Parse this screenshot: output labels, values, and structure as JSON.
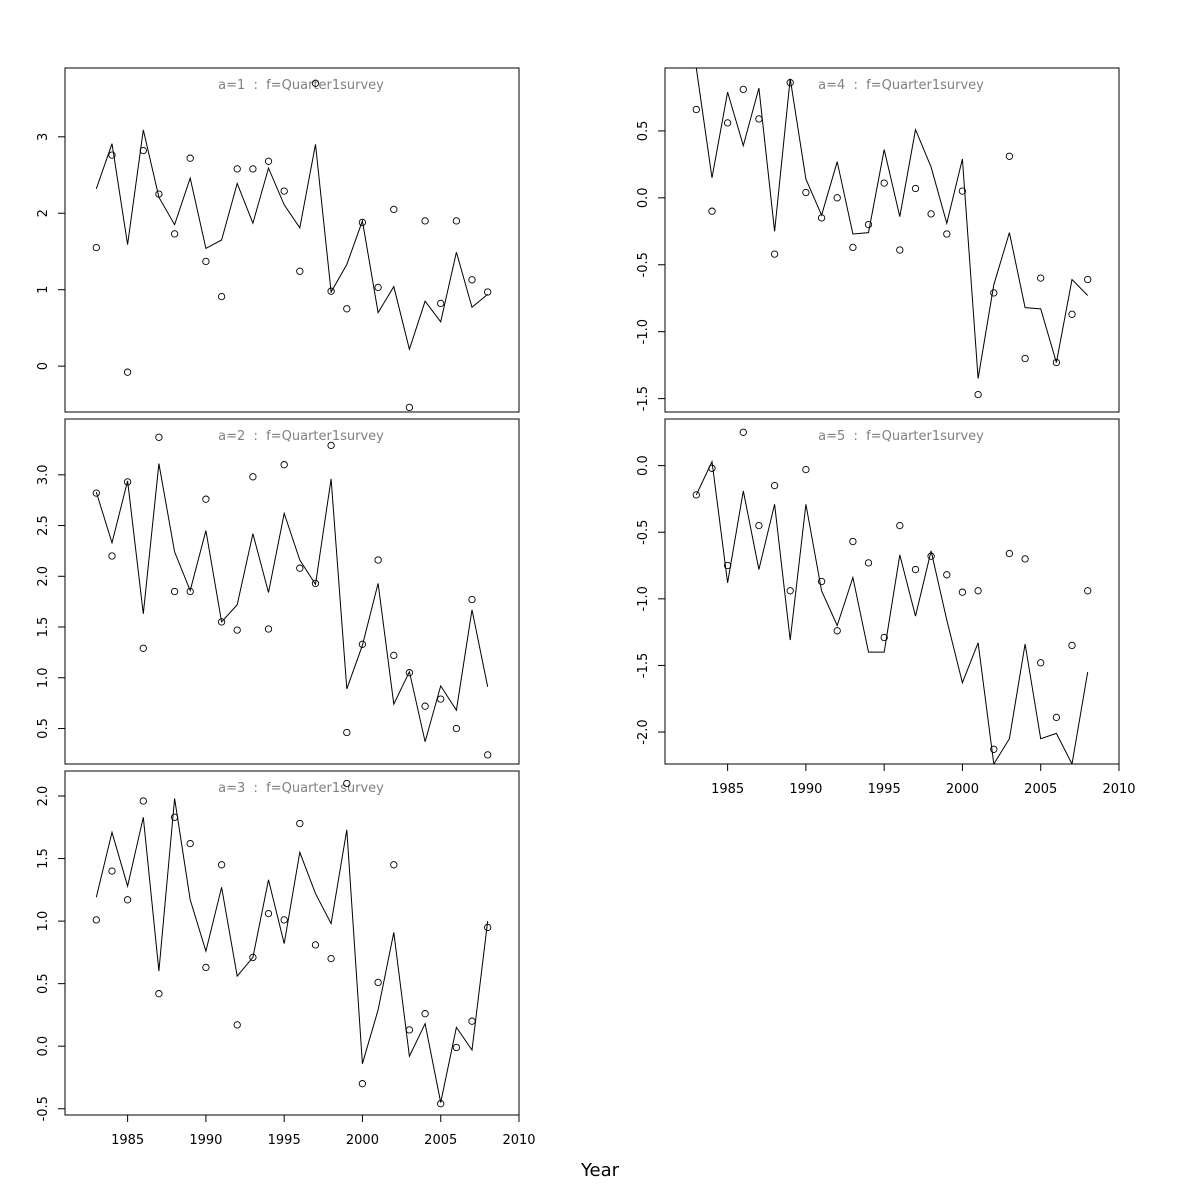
{
  "xlabel": "Year",
  "chart_data": {
    "type": "line",
    "xlabel": "Year",
    "xlim": [
      1981,
      2010
    ],
    "xticks": [
      1985,
      1990,
      1995,
      2000,
      2005,
      2010
    ],
    "x": [
      1983,
      1984,
      1985,
      1986,
      1987,
      1988,
      1989,
      1990,
      1991,
      1992,
      1993,
      1994,
      1995,
      1996,
      1997,
      1998,
      1999,
      2000,
      2001,
      2002,
      2003,
      2004,
      2005,
      2006,
      2007,
      2008
    ],
    "marks": "fitted values drawn as line, observed values as open circles",
    "panels": [
      {
        "title": "a=1  :  f=Quarter1survey",
        "ylim": [
          -0.6,
          3.9
        ],
        "yticks": [
          0,
          1,
          2,
          3
        ],
        "fitted": [
          2.32,
          2.91,
          1.59,
          3.09,
          2.21,
          1.85,
          2.46,
          1.54,
          1.65,
          2.39,
          1.87,
          2.59,
          2.11,
          1.81,
          2.9,
          0.97,
          1.33,
          1.9,
          0.7,
          1.04,
          0.22,
          0.85,
          0.58,
          1.49,
          0.77,
          0.94
        ],
        "observed": [
          1.55,
          2.76,
          -0.08,
          2.82,
          2.25,
          1.73,
          2.72,
          1.37,
          0.91,
          2.58,
          2.58,
          2.68,
          2.29,
          1.24,
          3.7,
          0.98,
          0.75,
          1.88,
          1.03,
          2.05,
          -0.54,
          1.9,
          0.82,
          1.9,
          1.13,
          0.97
        ]
      },
      {
        "title": "a=2  :  f=Quarter1survey",
        "ylim": [
          0.15,
          3.55
        ],
        "yticks": [
          0.5,
          1.0,
          1.5,
          2.0,
          2.5,
          3.0
        ],
        "fitted": [
          2.83,
          2.33,
          2.94,
          1.63,
          3.11,
          2.24,
          1.86,
          2.45,
          1.55,
          1.72,
          2.42,
          1.84,
          2.62,
          2.16,
          1.92,
          2.96,
          0.89,
          1.32,
          1.93,
          0.74,
          1.06,
          0.37,
          0.92,
          0.68,
          1.67,
          0.91
        ],
        "observed": [
          2.82,
          2.2,
          2.93,
          1.29,
          3.37,
          1.85,
          1.85,
          2.76,
          1.55,
          1.47,
          2.98,
          1.48,
          3.1,
          2.08,
          1.93,
          3.29,
          0.46,
          1.33,
          2.16,
          1.22,
          1.05,
          0.72,
          0.79,
          0.5,
          1.77,
          0.24
        ]
      },
      {
        "title": "a=3  :  f=Quarter1survey",
        "ylim": [
          -0.55,
          2.2
        ],
        "yticks": [
          -0.5,
          0.0,
          0.5,
          1.0,
          1.5,
          2.0
        ],
        "fitted": [
          1.19,
          1.71,
          1.28,
          1.83,
          0.6,
          1.98,
          1.17,
          0.76,
          1.27,
          0.56,
          0.71,
          1.33,
          0.82,
          1.55,
          1.22,
          0.98,
          1.73,
          -0.14,
          0.29,
          0.91,
          -0.08,
          0.18,
          -0.45,
          0.15,
          -0.03,
          1.0
        ],
        "observed": [
          1.01,
          1.4,
          1.17,
          1.96,
          0.42,
          1.83,
          1.62,
          0.63,
          1.45,
          0.17,
          0.71,
          1.06,
          1.01,
          1.78,
          0.81,
          0.7,
          2.1,
          -0.3,
          0.51,
          1.45,
          0.13,
          0.26,
          -0.46,
          -0.01,
          0.2,
          0.95
        ]
      },
      {
        "title": "a=4  :  f=Quarter1survey",
        "ylim": [
          -1.6,
          0.97
        ],
        "yticks": [
          -1.5,
          -1.0,
          -0.5,
          0.0,
          0.5
        ],
        "fitted": [
          0.97,
          0.15,
          0.79,
          0.39,
          0.82,
          -0.25,
          0.89,
          0.14,
          -0.13,
          0.27,
          -0.27,
          -0.26,
          0.36,
          -0.14,
          0.51,
          0.23,
          -0.19,
          0.29,
          -1.35,
          -0.65,
          -0.26,
          -0.82,
          -0.83,
          -1.23,
          -0.61,
          -0.73
        ],
        "observed": [
          0.66,
          -0.1,
          0.56,
          0.81,
          0.59,
          -0.42,
          0.86,
          0.04,
          -0.15,
          0.0,
          -0.37,
          -0.2,
          0.11,
          -0.39,
          0.07,
          -0.12,
          -0.27,
          0.05,
          -1.47,
          -0.71,
          0.31,
          -1.2,
          -0.6,
          -1.23,
          -0.87,
          -0.61
        ]
      },
      {
        "title": "a=5  :  f=Quarter1survey",
        "ylim": [
          -2.24,
          0.35
        ],
        "yticks": [
          -2.0,
          -1.5,
          -1.0,
          -0.5,
          0.0
        ],
        "fitted": [
          -0.22,
          0.03,
          -0.88,
          -0.19,
          -0.78,
          -0.29,
          -1.31,
          -0.29,
          -0.94,
          -1.2,
          -0.84,
          -1.4,
          -1.4,
          -0.67,
          -1.13,
          -0.64,
          -1.16,
          -1.63,
          -1.33,
          -2.24,
          -2.05,
          -1.34,
          -2.05,
          -2.01,
          -2.24,
          -1.55
        ],
        "observed": [
          -0.22,
          -0.02,
          -0.75,
          0.25,
          -0.45,
          -0.15,
          -0.94,
          -0.03,
          -0.87,
          -1.24,
          -0.57,
          -0.73,
          -1.29,
          -0.45,
          -0.78,
          -0.68,
          -0.82,
          -0.95,
          -0.94,
          -2.13,
          -0.66,
          -0.7,
          -1.48,
          -1.89,
          -1.35,
          -0.94
        ]
      }
    ]
  }
}
